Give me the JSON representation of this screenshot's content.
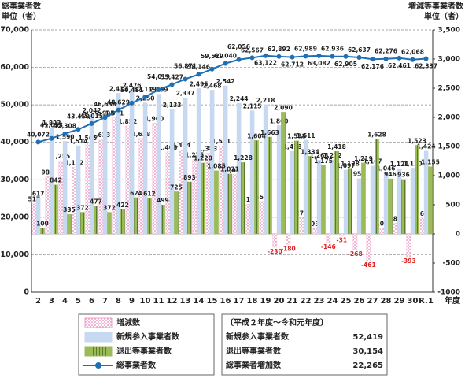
{
  "chart_data": {
    "type": "bar",
    "y_label": "総事業者数",
    "y_unit": "単位（者）",
    "y2_label": "増減等事業者数",
    "y2_unit": "単位（者）",
    "x_label": "年度",
    "categories": [
      "2",
      "3",
      "4",
      "5",
      "6",
      "7",
      "8",
      "9",
      "10",
      "11",
      "12",
      "13",
      "14",
      "15",
      "16",
      "17",
      "18",
      "19",
      "20",
      "21",
      "22",
      "23",
      "24",
      "25",
      "26",
      "27",
      "28",
      "29",
      "30",
      "R.1"
    ],
    "ylim": [
      0,
      70000
    ],
    "yticks": [
      0,
      {
        "value": 10000,
        "label": "10,000"
      },
      {
        "value": 20000,
        "label": "20,000"
      },
      {
        "value": 30000,
        "label": "30,000"
      },
      {
        "value": 40000,
        "label": "40,000"
      },
      {
        "value": 50000,
        "label": "50,000"
      },
      {
        "value": 60000,
        "label": "60,000"
      },
      {
        "value": 70000,
        "label": "70,000"
      }
    ],
    "y2lim": [
      -1000,
      3500
    ],
    "y2ticks": [
      -1000,
      -500,
      0,
      500,
      {
        "value": 1000,
        "label": "1,000"
      },
      {
        "value": 1500,
        "label": "1,500"
      },
      {
        "value": 2000,
        "label": "2,000"
      },
      {
        "value": 2500,
        "label": "2,500"
      },
      {
        "value": 3000,
        "label": "3,000"
      },
      {
        "value": 3500,
        "label": "3,500"
      }
    ],
    "grid": true,
    "series": [
      {
        "name": "増減数",
        "type": "bar",
        "axis": "y2",
        "color": "#f0a0c8",
        "values": [
          517,
          981,
          1255,
          1142,
          1565,
          1623,
          1991,
          1852,
          1638,
          1900,
          1408,
          1444,
          1275,
          1383,
          1511,
          1016,
          511,
          555,
          -230,
          -180,
          277,
          93,
          -146,
          -31,
          -268,
          -461,
          100,
          185,
          -393,
          269
        ],
        "value_labels": [
          "517",
          "981",
          "1,255",
          "1,142",
          "1,565",
          "1,623",
          "1,991",
          "1,852",
          "1,638",
          "1,900",
          "1,408",
          "1,444",
          "1,275",
          "1,383",
          "1,511",
          "1,016",
          "511",
          "555",
          "-230",
          "-180",
          "277",
          "93",
          "-146",
          "-31",
          "-268",
          "-461",
          "100",
          "185",
          "-393",
          "269"
        ]
      },
      {
        "name": "新規参入事業者数",
        "type": "bar",
        "axis": "y2",
        "color": "#c6d9f1",
        "values": [
          617,
          1823,
          1590,
          1514,
          2042,
          1995,
          2413,
          2476,
          2250,
          2399,
          2133,
          2337,
          2495,
          2468,
          2542,
          2244,
          2115,
          2218,
          1860,
          1418,
          1611,
          1268,
          1272,
          1097,
          951,
          1167,
          1046,
          1121,
          1130,
          1424
        ],
        "value_labels": [
          "617",
          "1,823",
          "1,590",
          "1,514",
          "2,042",
          "1,995",
          "2,413",
          "2,476",
          "2,250",
          "2,399",
          "2,133",
          "2,337",
          "2,495",
          "2,468",
          "2,542",
          "2,244",
          "2,115",
          "2,218",
          "1,860",
          "1,418",
          "1,611",
          "1,268",
          "1,272",
          "1,097",
          "951",
          "1,167",
          "1,046",
          "1,121",
          "1,130",
          "1,424"
        ]
      },
      {
        "name": "退出等事業者数",
        "type": "bar",
        "axis": "y2",
        "color": "#9bbb59",
        "values": [
          100,
          842,
          335,
          372,
          477,
          372,
          422,
          624,
          612,
          499,
          725,
          893,
          1220,
          1085,
          1031,
          1228,
          1604,
          1663,
          2090,
          1598,
          1334,
          1175,
          1418,
          1128,
          1219,
          1628,
          946,
          936,
          1523,
          1155
        ],
        "value_labels": [
          "100",
          "842",
          "335",
          "372",
          "477",
          "372",
          "422",
          "624",
          "612",
          "499",
          "725",
          "893",
          "1,220",
          "1,085",
          "1,031",
          "1,228",
          "1,604",
          "1,663",
          "2,090",
          "1,598",
          "1,334",
          "1,175",
          "1,418",
          "1,128",
          "1,219",
          "1,628",
          "946",
          "936",
          "1,523",
          "1,155"
        ]
      },
      {
        "name": "総事業者数",
        "type": "line",
        "axis": "y",
        "color": "#1f6fb5",
        "values": [
          40072,
          41053,
          42308,
          43450,
          45015,
          46638,
          48629,
          50481,
          52119,
          54019,
          55427,
          56871,
          58146,
          59529,
          61040,
          62056,
          62567,
          63122,
          62892,
          62712,
          62989,
          63082,
          62936,
          62905,
          62637,
          62176,
          62276,
          62461,
          62068,
          62337
        ],
        "value_labels": [
          "40,072",
          "41,053",
          "42,308",
          "43,450",
          "45,015",
          "46,638",
          "48,629",
          "50,481",
          "52,119",
          "54,019",
          "55,427",
          "56,871",
          "58,146",
          "59,529",
          "61,040",
          "62,056",
          "62,567",
          "63,122",
          "62,892",
          "62,712",
          "62,989",
          "63,082",
          "62,936",
          "62,905",
          "62,637",
          "62,176",
          "62,276",
          "62,461",
          "62,068",
          "62,337"
        ]
      }
    ],
    "negative_label_color": "#e02020",
    "summary": {
      "title": "〔平成２年度～令和元年度〕",
      "rows": [
        [
          "新規参入事業者数",
          "52,419"
        ],
        [
          "退出等事業者数",
          "30,154"
        ],
        [
          "総事業者増加数",
          "22,265"
        ]
      ]
    }
  }
}
